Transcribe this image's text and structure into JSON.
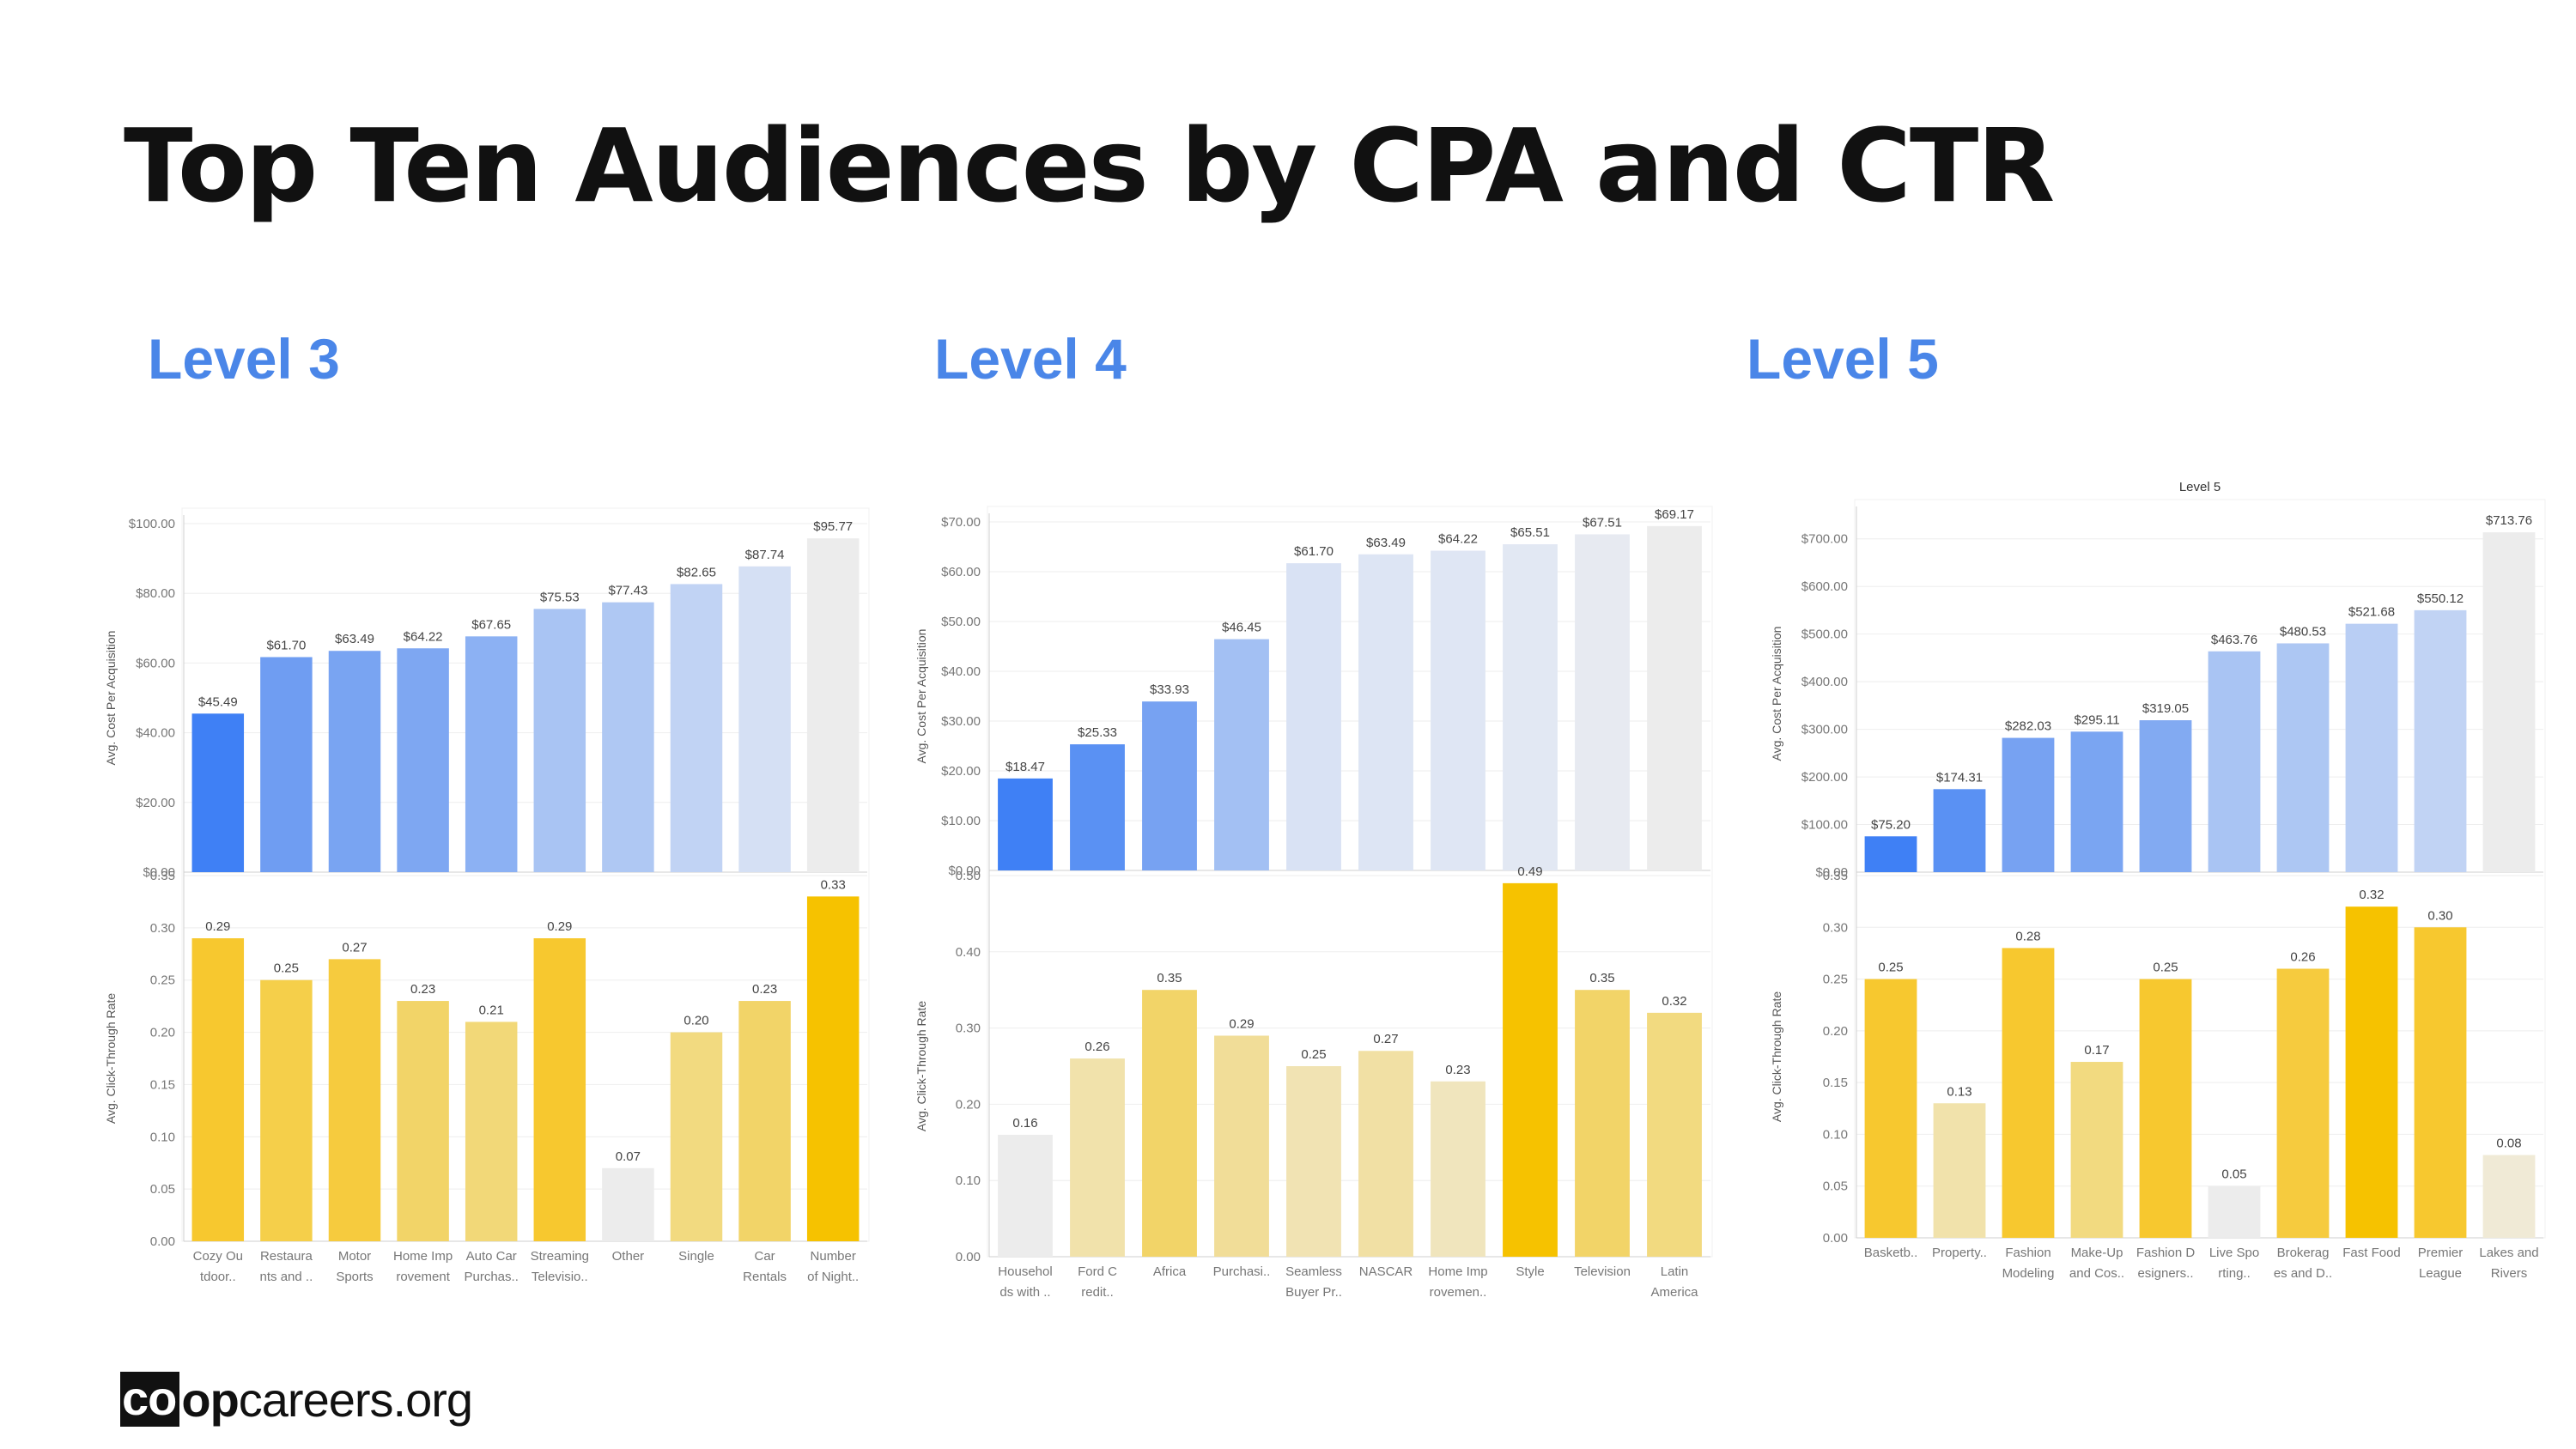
{
  "slide": {
    "title": "Top Ten Audiences by CPA and CTR",
    "logo": {
      "co": "co",
      "op": "op",
      "rest": "careers.org"
    },
    "colors": {
      "heading": "#4a86e8",
      "title": "#111111"
    }
  },
  "chart_data": [
    {
      "type": "bar",
      "level": "Level 3",
      "title": "",
      "categories": [
        [
          "Cozy Ou",
          "tdoor.."
        ],
        [
          "Restaura",
          "nts and .."
        ],
        [
          "Motor",
          "Sports"
        ],
        [
          "Home Imp",
          "rovement"
        ],
        [
          "Auto Car",
          "Purchas.."
        ],
        [
          "Streaming",
          "Televisio.."
        ],
        [
          "Other"
        ],
        [
          "Single"
        ],
        [
          "Car",
          "Rentals"
        ],
        [
          "Number",
          "of Night.."
        ]
      ],
      "cpa": {
        "ylabel": "Avg. Cost Per Acquisition",
        "ylim": [
          0,
          100
        ],
        "ticks": [
          "$0.00",
          "$20.00",
          "$40.00",
          "$60.00",
          "$80.00",
          "$100.00"
        ],
        "values": [
          45.49,
          61.7,
          63.49,
          64.22,
          67.65,
          75.53,
          77.43,
          82.65,
          87.74,
          95.77
        ],
        "labels": [
          "$45.49",
          "$61.70",
          "$63.49",
          "$64.22",
          "$67.65",
          "$75.53",
          "$77.43",
          "$82.65",
          "$87.74",
          "$95.77"
        ],
        "colors": [
          "#3f80f5",
          "#6f9df2",
          "#79a4f2",
          "#7ea7f2",
          "#8cb1f3",
          "#a9c4f3",
          "#afc8f3",
          "#c1d3f4",
          "#d5e0f4",
          "#ececec"
        ]
      },
      "ctr": {
        "ylabel": "Avg. Click-Through Rate",
        "ylim": [
          0,
          0.35
        ],
        "ticks": [
          "0.00",
          "0.05",
          "0.10",
          "0.15",
          "0.20",
          "0.25",
          "0.30",
          "0.35"
        ],
        "values": [
          0.29,
          0.25,
          0.27,
          0.23,
          0.21,
          0.29,
          0.07,
          0.2,
          0.23,
          0.33
        ],
        "labels": [
          "0.29",
          "0.25",
          "0.27",
          "0.23",
          "0.21",
          "0.29",
          "0.07",
          "0.20",
          "0.23",
          "0.33"
        ],
        "colors": [
          "#f7c82f",
          "#f5cf4a",
          "#f6cb3e",
          "#f2d468",
          "#f2d878",
          "#f7c82f",
          "#ececec",
          "#f2da80",
          "#f2d468",
          "#f6c200"
        ]
      }
    },
    {
      "type": "bar",
      "level": "Level 4",
      "title": "",
      "categories": [
        [
          "Househol",
          "ds with .."
        ],
        [
          "Ford C",
          "redit.."
        ],
        [
          "Africa"
        ],
        [
          "Purchasi.."
        ],
        [
          "Seamless",
          "Buyer Pr.."
        ],
        [
          "NASCAR"
        ],
        [
          "Home Imp",
          "rovemen.."
        ],
        [
          "Style"
        ],
        [
          "Television"
        ],
        [
          "Latin",
          "America"
        ]
      ],
      "cpa": {
        "ylabel": "Avg. Cost Per Acquisition",
        "ylim": [
          0,
          70
        ],
        "ticks": [
          "$0.00",
          "$10.00",
          "$20.00",
          "$30.00",
          "$40.00",
          "$50.00",
          "$60.00",
          "$70.00"
        ],
        "values": [
          18.47,
          25.33,
          33.93,
          46.45,
          61.7,
          63.49,
          64.22,
          65.51,
          67.51,
          69.17
        ],
        "labels": [
          "$18.47",
          "$25.33",
          "$33.93",
          "$46.45",
          "$61.70",
          "$63.49",
          "$64.22",
          "$65.51",
          "$67.51",
          "$69.17"
        ],
        "colors": [
          "#3f80f5",
          "#5a91f3",
          "#77a2f2",
          "#a3c0f3",
          "#d9e2f4",
          "#dde5f4",
          "#dfe6f4",
          "#e2e8f3",
          "#e7eaf1",
          "#ececec"
        ]
      },
      "ctr": {
        "ylabel": "Avg. Click-Through Rate",
        "ylim": [
          0,
          0.5
        ],
        "ticks": [
          "0.00",
          "0.10",
          "0.20",
          "0.30",
          "0.40",
          "0.50"
        ],
        "values": [
          0.16,
          0.26,
          0.35,
          0.29,
          0.25,
          0.27,
          0.23,
          0.49,
          0.35,
          0.32
        ],
        "labels": [
          "0.16",
          "0.26",
          "0.35",
          "0.29",
          "0.25",
          "0.27",
          "0.23",
          "0.49",
          "0.35",
          "0.32"
        ],
        "colors": [
          "#ececec",
          "#f1e2ab",
          "#f2d468",
          "#f1dd98",
          "#f1e3b3",
          "#f1e0a4",
          "#f0e5bd",
          "#f6c200",
          "#f2d468",
          "#f2da80"
        ]
      }
    },
    {
      "type": "bar",
      "level": "Level 5",
      "title": "Level 5",
      "categories": [
        [
          "Basketb.."
        ],
        [
          "Property.."
        ],
        [
          "Fashion",
          "Modeling"
        ],
        [
          "Make-Up",
          "and Cos.."
        ],
        [
          "Fashion D",
          "esigners.."
        ],
        [
          "Live Spo",
          "rting.."
        ],
        [
          "Brokerag",
          "es and D.."
        ],
        [
          "Fast Food"
        ],
        [
          "Premier",
          "League"
        ],
        [
          "Lakes and",
          "Rivers"
        ]
      ],
      "cpa": {
        "ylabel": "Avg. Cost Per Acquisition",
        "ylim": [
          0,
          750
        ],
        "ticks": [
          "$0.00",
          "$100.00",
          "$200.00",
          "$300.00",
          "$400.00",
          "$500.00",
          "$600.00",
          "$700.00"
        ],
        "values": [
          75.2,
          174.31,
          282.03,
          295.11,
          319.05,
          463.76,
          480.53,
          521.68,
          550.12,
          713.76
        ],
        "labels": [
          "$75.20",
          "$174.31",
          "$282.03",
          "$295.11",
          "$319.05",
          "$463.76",
          "$480.53",
          "$521.68",
          "$550.12",
          "$713.76"
        ],
        "colors": [
          "#3f80f5",
          "#5a91f3",
          "#77a2f2",
          "#7aa5f2",
          "#82aaf2",
          "#a9c4f3",
          "#adc7f3",
          "#b9cef4",
          "#c1d3f4",
          "#ececec"
        ]
      },
      "ctr": {
        "ylabel": "Avg. Click-Through Rate",
        "ylim": [
          0,
          0.35
        ],
        "ticks": [
          "0.00",
          "0.05",
          "0.10",
          "0.15",
          "0.20",
          "0.25",
          "0.30",
          "0.35"
        ],
        "values": [
          0.25,
          0.13,
          0.28,
          0.17,
          0.25,
          0.05,
          0.26,
          0.32,
          0.3,
          0.08
        ],
        "labels": [
          "0.25",
          "0.13",
          "0.28",
          "0.17",
          "0.25",
          "0.05",
          "0.26",
          "0.32",
          "0.30",
          "0.08"
        ],
        "colors": [
          "#f7c82f",
          "#f1e2ab",
          "#f7c82f",
          "#f2da80",
          "#f7c82f",
          "#ececec",
          "#f6cb3e",
          "#f6c200",
          "#f7c82f",
          "#f0ead6"
        ]
      }
    }
  ]
}
